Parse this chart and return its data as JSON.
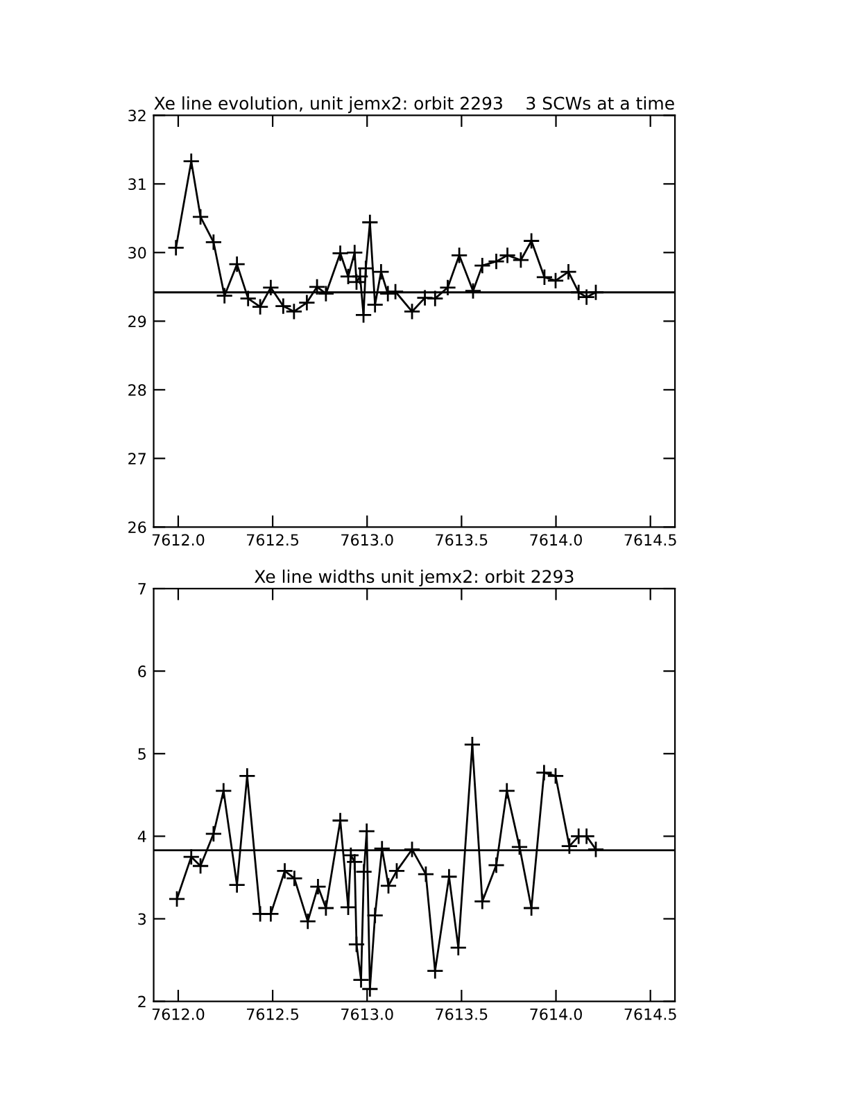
{
  "chart_data": [
    {
      "type": "line",
      "title": "Xe line evolution, unit jemx2: orbit 2293",
      "subtitle": "3 SCWs at a time",
      "marker": "cross",
      "line_style": "solid",
      "grid": false,
      "x": [
        7611.988,
        7612.069,
        7612.118,
        7612.187,
        7612.245,
        7612.311,
        7612.37,
        7612.434,
        7612.49,
        7612.556,
        7612.613,
        7612.681,
        7612.735,
        7612.782,
        7612.858,
        7612.9,
        7612.934,
        7612.944,
        7612.963,
        7612.981,
        7612.993,
        7613.015,
        7613.042,
        7613.074,
        7613.11,
        7613.15,
        7613.238,
        7613.306,
        7613.36,
        7613.427,
        7613.488,
        7613.561,
        7613.61,
        7613.684,
        7613.743,
        7613.814,
        7613.87,
        7613.939,
        7613.998,
        7614.066,
        7614.12,
        7614.162,
        7614.211
      ],
      "series": [
        {
          "color": "#000000",
          "values": [
            30.07,
            31.33,
            30.52,
            30.15,
            29.37,
            29.83,
            29.33,
            29.21,
            29.49,
            29.22,
            29.14,
            29.27,
            29.5,
            29.4,
            29.99,
            29.65,
            30.0,
            29.57,
            29.65,
            29.09,
            29.77,
            30.44,
            29.24,
            29.72,
            29.4,
            29.43,
            29.14,
            29.34,
            29.33,
            29.49,
            29.96,
            29.44,
            29.81,
            29.87,
            29.96,
            29.89,
            30.17,
            29.64,
            29.59,
            29.72,
            29.42,
            29.35,
            29.42
          ]
        }
      ],
      "ref_lines": [
        {
          "axis": "y",
          "value": 29.42,
          "color": "#000000"
        }
      ],
      "xlim": [
        7611.87,
        7614.63
      ],
      "xticks": [
        {
          "value": 7612.0,
          "label": "7612.0"
        },
        {
          "value": 7612.5,
          "label": "7612.5"
        },
        {
          "value": 7613.0,
          "label": "7613.0"
        },
        {
          "value": 7613.5,
          "label": "7613.5"
        },
        {
          "value": 7614.0,
          "label": "7614.0"
        },
        {
          "value": 7614.5,
          "label": "7614.5"
        }
      ],
      "ylim": [
        26,
        32
      ],
      "yticks": [
        26,
        27,
        28,
        29,
        30,
        31,
        32
      ]
    },
    {
      "type": "line",
      "title": "Xe line widths unit jemx2: orbit 2293",
      "marker": "cross",
      "line_style": "solid",
      "grid": false,
      "x": [
        7611.993,
        7612.069,
        7612.118,
        7612.187,
        7612.24,
        7612.311,
        7612.365,
        7612.434,
        7612.49,
        7612.564,
        7612.615,
        7612.686,
        7612.74,
        7612.782,
        7612.858,
        7612.9,
        7612.914,
        7612.934,
        7612.944,
        7612.968,
        7612.983,
        7612.998,
        7613.015,
        7613.042,
        7613.079,
        7613.113,
        7613.157,
        7613.238,
        7613.311,
        7613.36,
        7613.434,
        7613.483,
        7613.557,
        7613.61,
        7613.684,
        7613.74,
        7613.807,
        7613.87,
        7613.937,
        7613.998,
        7614.071,
        7614.12,
        7614.162,
        7614.211
      ],
      "series": [
        {
          "color": "#000000",
          "values": [
            3.24,
            3.75,
            3.64,
            4.03,
            4.55,
            3.41,
            4.73,
            3.06,
            3.06,
            3.58,
            3.49,
            2.97,
            3.39,
            3.13,
            4.19,
            3.14,
            3.77,
            3.69,
            2.69,
            2.26,
            3.57,
            4.06,
            2.15,
            3.04,
            3.85,
            3.4,
            3.58,
            3.84,
            3.54,
            2.37,
            3.51,
            2.65,
            5.11,
            3.21,
            3.65,
            4.55,
            3.87,
            3.13,
            4.77,
            4.73,
            3.88,
            4.0,
            4.0,
            3.84
          ]
        }
      ],
      "ref_lines": [
        {
          "axis": "y",
          "value": 3.83,
          "color": "#000000"
        }
      ],
      "xlim": [
        7611.87,
        7614.63
      ],
      "xticks": [
        {
          "value": 7612.0,
          "label": "7612.0"
        },
        {
          "value": 7612.5,
          "label": "7612.5"
        },
        {
          "value": 7613.0,
          "label": "7613.0"
        },
        {
          "value": 7613.5,
          "label": "7613.5"
        },
        {
          "value": 7614.0,
          "label": "7614.0"
        },
        {
          "value": 7614.5,
          "label": "7614.5"
        }
      ],
      "ylim": [
        2,
        7
      ],
      "yticks": [
        2,
        3,
        4,
        5,
        6,
        7
      ]
    }
  ]
}
